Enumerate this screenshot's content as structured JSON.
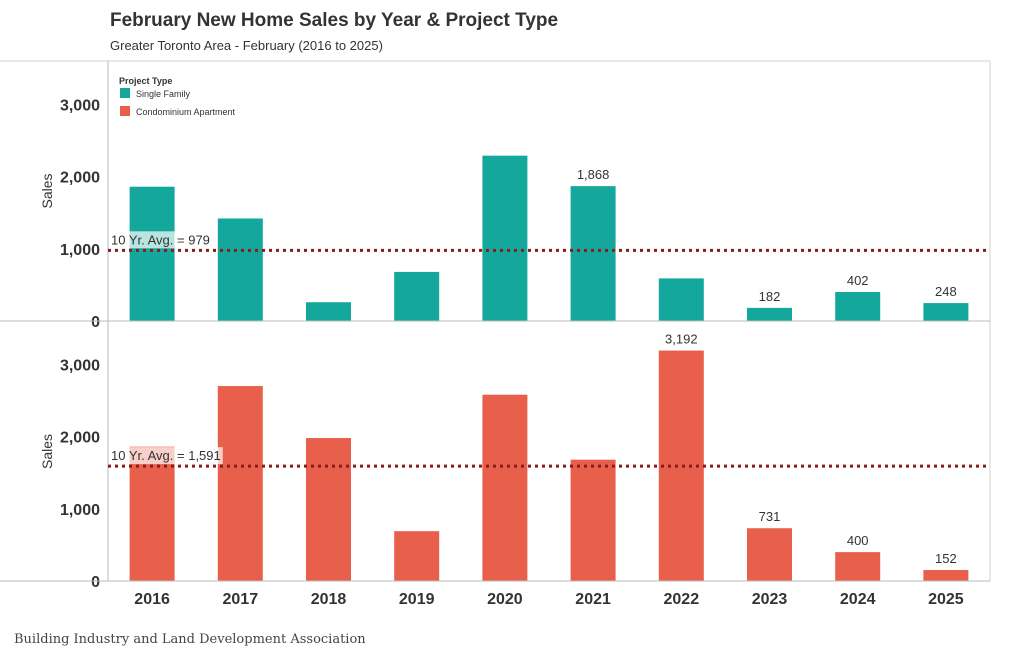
{
  "title": "February New Home Sales by Year & Project Type",
  "subtitle": "Greater Toronto Area - February (2016 to 2025)",
  "footer": "Building Industry and Land Development Association",
  "legend": {
    "title": "Project Type",
    "items": [
      "Single Family",
      "Condominium Apartment"
    ]
  },
  "colors": {
    "single_family": "#14a79c",
    "condo": "#e8604c",
    "avg_line": "#8b1a1a"
  },
  "chart_data": [
    {
      "type": "bar",
      "categories": [
        "2016",
        "2017",
        "2018",
        "2019",
        "2020",
        "2021",
        "2022",
        "2023",
        "2024",
        "2025"
      ],
      "series": [
        {
          "name": "Single Family",
          "values": [
            1860,
            1420,
            260,
            680,
            2290,
            1868,
            590,
            182,
            402,
            248
          ]
        }
      ],
      "data_labels": {
        "2021": "1,868",
        "2023": "182",
        "2024": "402",
        "2025": "248"
      },
      "ylabel": "Sales",
      "yticks": [
        0,
        1000,
        2000,
        3000
      ],
      "ytick_labels": [
        "0",
        "1,000",
        "2,000",
        "3,000"
      ],
      "ylim": [
        0,
        3600
      ],
      "reference_line": {
        "value": 979,
        "label": "10 Yr. Avg. = 979"
      }
    },
    {
      "type": "bar",
      "categories": [
        "2016",
        "2017",
        "2018",
        "2019",
        "2020",
        "2021",
        "2022",
        "2023",
        "2024",
        "2025"
      ],
      "series": [
        {
          "name": "Condominium Apartment",
          "values": [
            1860,
            2700,
            1980,
            690,
            2580,
            1680,
            3192,
            731,
            400,
            152
          ]
        }
      ],
      "data_labels": {
        "2022": "3,192",
        "2023": "731",
        "2024": "400",
        "2025": "152"
      },
      "ylabel": "Sales",
      "yticks": [
        0,
        1000,
        2000,
        3000
      ],
      "ytick_labels": [
        "0",
        "1,000",
        "2,000",
        "3,000"
      ],
      "ylim": [
        0,
        3600
      ],
      "reference_line": {
        "value": 1591,
        "label": "10 Yr. Avg. = 1,591"
      }
    }
  ]
}
